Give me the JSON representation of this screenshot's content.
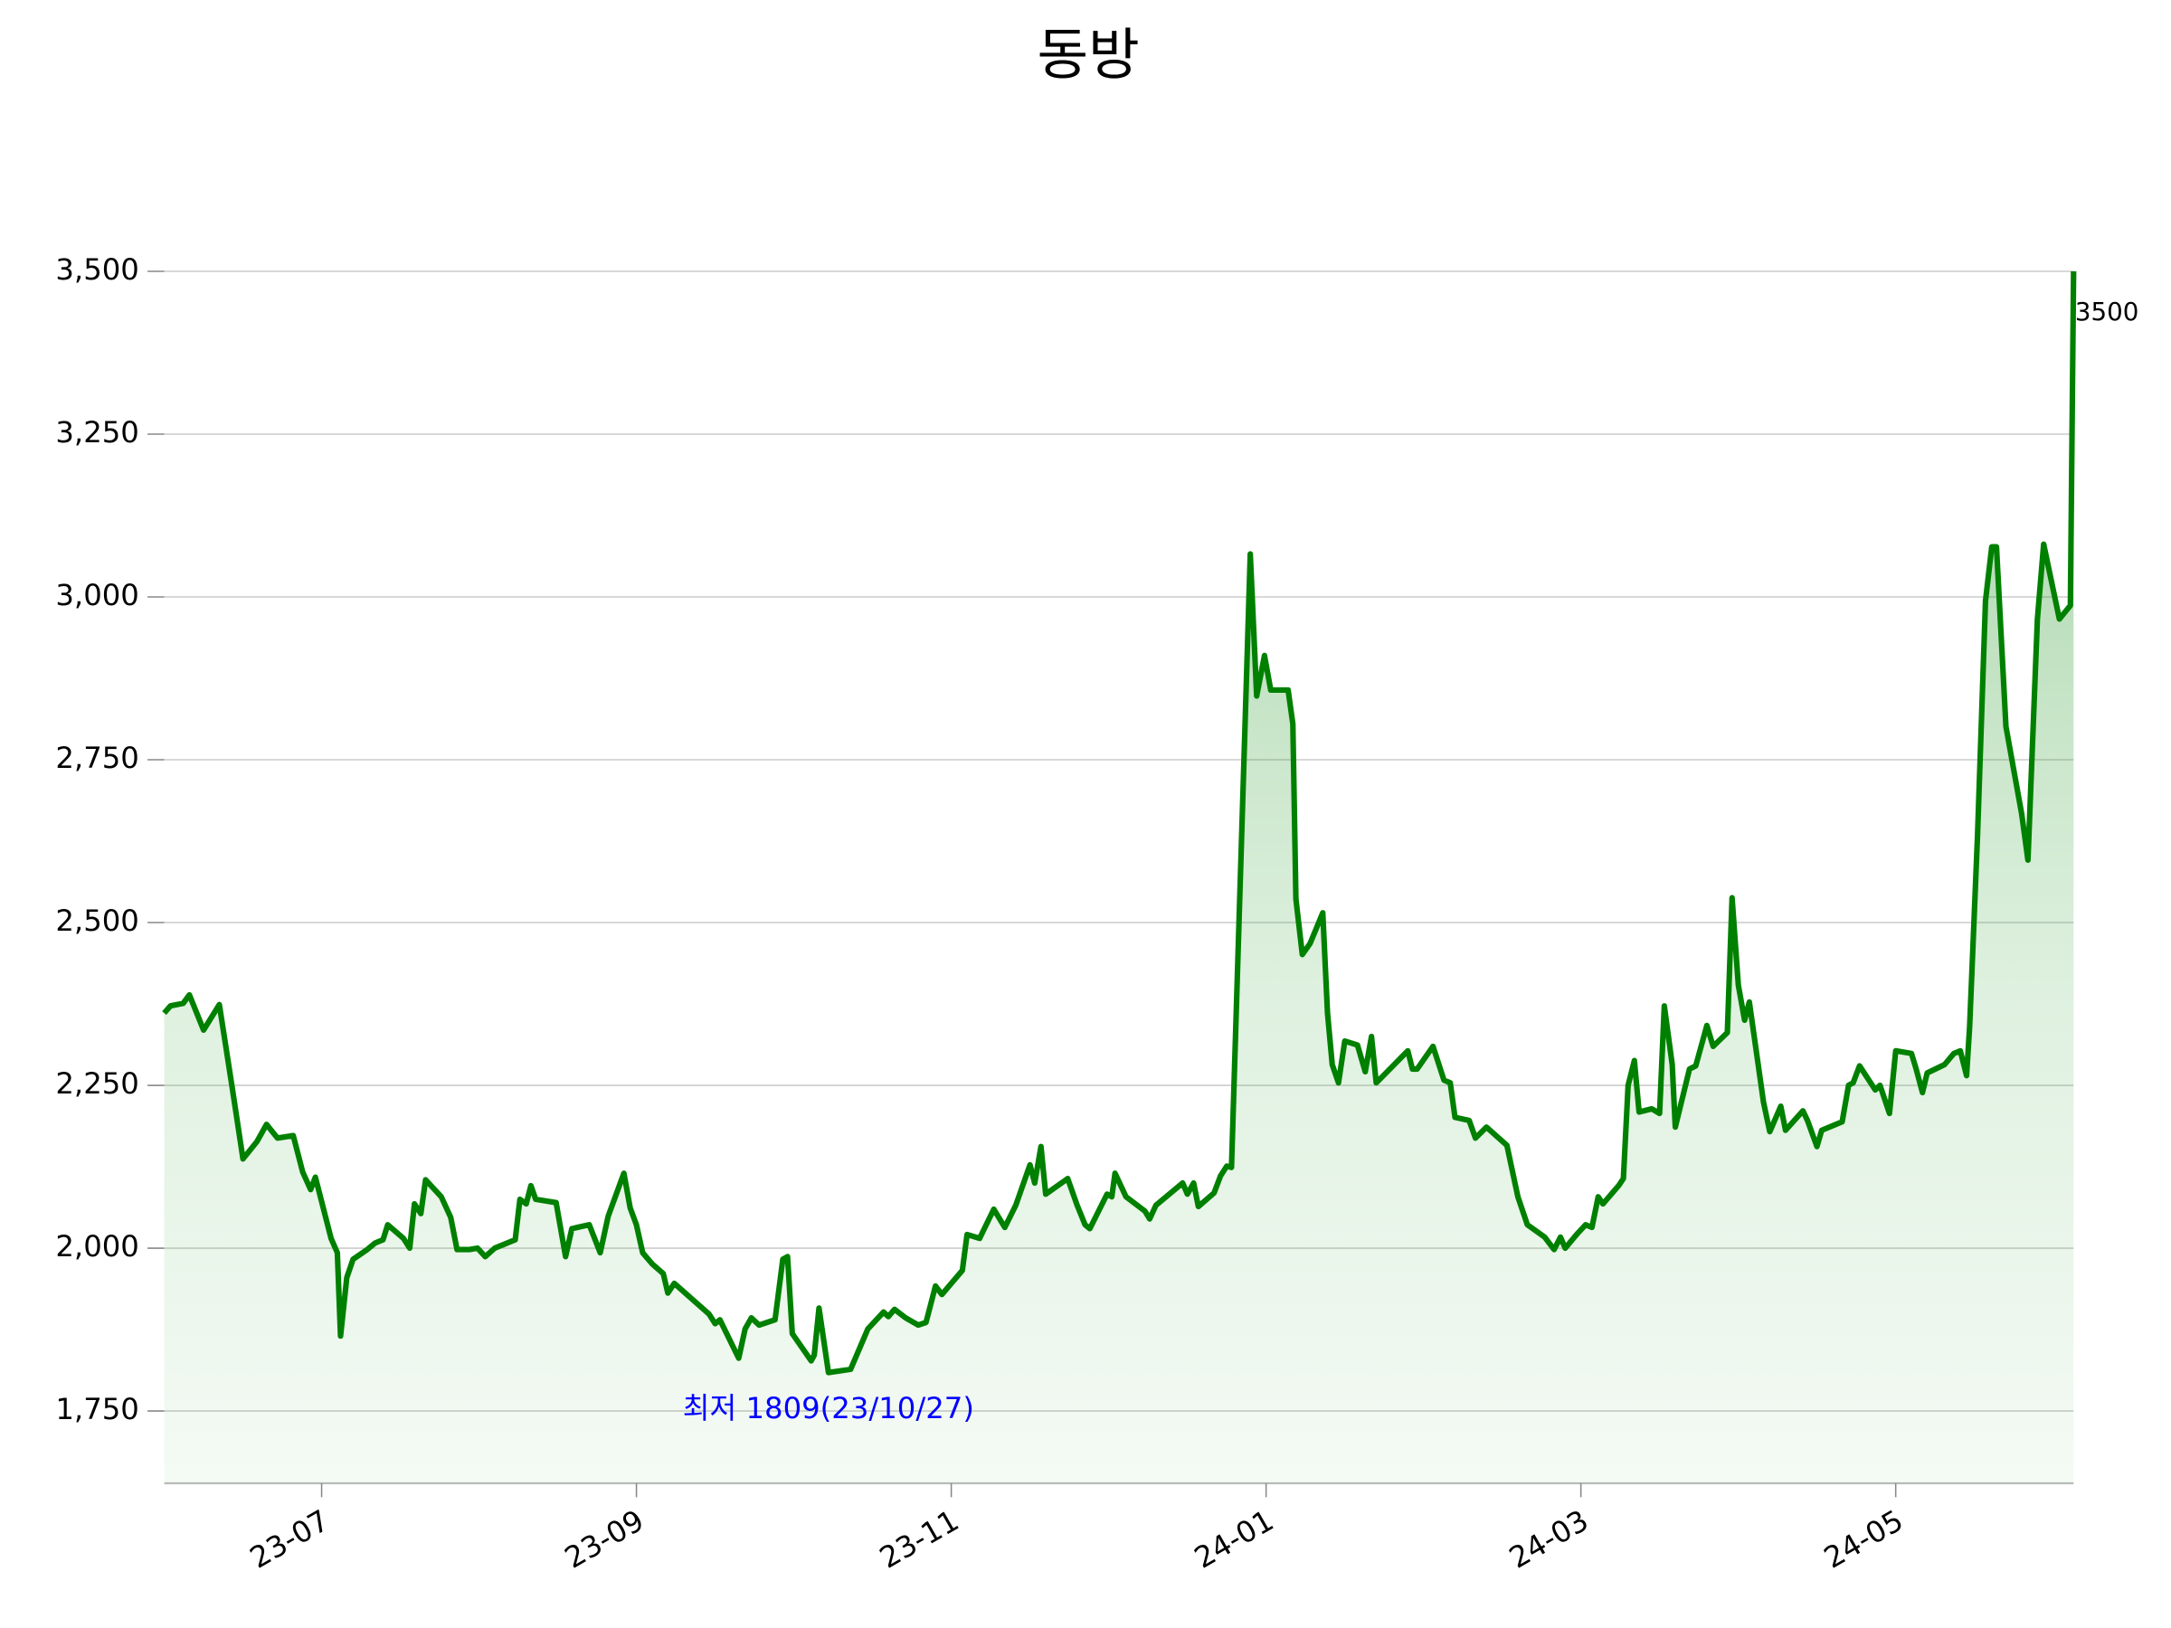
{
  "chart_data": {
    "type": "line",
    "title": "동방",
    "x": [
      0,
      0.04,
      0.12,
      0.16,
      0.25,
      0.35,
      0.43,
      0.5,
      0.59,
      0.65,
      0.72,
      0.82,
      0.88,
      0.93,
      0.96,
      1.06,
      1.1,
      1.12,
      1.16,
      1.2,
      1.29,
      1.34,
      1.39,
      1.42,
      1.52,
      1.56,
      1.59,
      1.63,
      1.66,
      1.76,
      1.82,
      1.86,
      1.94,
      1.99,
      2.04,
      2.1,
      2.23,
      2.26,
      2.3,
      2.33,
      2.36,
      2.49,
      2.55,
      2.59,
      2.7,
      2.77,
      2.82,
      2.92,
      2.96,
      3,
      3.04,
      3.1,
      3.17,
      3.2,
      3.24,
      3.46,
      3.5,
      3.53,
      3.65,
      3.69,
      3.73,
      3.78,
      3.88,
      3.93,
      3.96,
      3.99,
      4.11,
      4.13,
      4.16,
      4.22,
      4.36,
      4.47,
      4.57,
      4.6,
      4.64,
      4.71,
      4.79,
      4.84,
      4.9,
      4.94,
      5.07,
      5.1,
      5.18,
      5.27,
      5.34,
      5.41,
      5.5,
      5.53,
      5.57,
      5.6,
      5.74,
      5.8,
      5.85,
      5.88,
      5.99,
      6.02,
      6.04,
      6.11,
      6.23,
      6.26,
      6.3,
      6.47,
      6.5,
      6.54,
      6.57,
      6.67,
      6.71,
      6.75,
      6.78,
      6.9,
      6.94,
      6.99,
      7.03,
      7.14,
      7.17,
      7.19,
      7.23,
      7.28,
      7.36,
      7.39,
      7.42,
      7.46,
      7.5,
      7.58,
      7.63,
      7.67,
      7.7,
      7.9,
      7.93,
      7.96,
      8.06,
      8.13,
      8.17,
      8.2,
      8.29,
      8.33,
      8.4,
      8.53,
      8.6,
      8.66,
      8.77,
      8.83,
      8.87,
      8.9,
      8.98,
      9.03,
      9.07,
      9.11,
      9.14,
      9.24,
      9.27,
      9.3,
      9.34,
      9.37,
      9.45,
      9.5,
      9.53,
      9.58,
      9.6,
      9.69,
      9.73,
      9.8,
      9.84,
      9.93,
      9.96,
      10,
      10.04,
      10.07,
      10.16,
      10.2,
      10.27,
      10.3,
      10.41,
      10.44,
      10.5,
      10.53,
      10.66,
      10.7,
      10.73,
      10.77,
      10.87,
      10.9,
      10.96,
      11,
      11.1,
      11.13,
      11.17,
      11.2,
      11.31,
      11.37,
      11.41,
      11.45,
      11.47,
      11.52,
      11.57,
      11.61,
      11.64,
      11.7,
      11.8,
      11.84,
      11.9,
      11.94,
      12.04,
      12.11,
      12.13
    ],
    "series": [
      {
        "color": "#008000",
        "values": [
          2361,
          2372,
          2376,
          2389,
          2335,
          2374,
          2250,
          2137,
          2164,
          2190,
          2169,
          2173,
          2117,
          2090,
          2109,
          2015,
          1993,
          1865,
          1955,
          1983,
          1998,
          2008,
          2013,
          2036,
          2015,
          2000,
          2068,
          2053,
          2105,
          2079,
          2047,
          1998,
          1998,
          2000,
          1987,
          2000,
          2013,
          2075,
          2068,
          2096,
          2075,
          2070,
          1987,
          2030,
          2036,
          1993,
          2049,
          2115,
          2062,
          2036,
          1993,
          1976,
          1961,
          1931,
          1946,
          1899,
          1884,
          1890,
          1831,
          1876,
          1893,
          1882,
          1890,
          1983,
          1987,
          1869,
          1827,
          1836,
          1908,
          1809,
          1814,
          1876,
          1902,
          1895,
          1906,
          1893,
          1882,
          1886,
          1942,
          1929,
          1966,
          2021,
          2015,
          2060,
          2032,
          2066,
          2128,
          2100,
          2156,
          2083,
          2107,
          2066,
          2036,
          2030,
          2083,
          2079,
          2115,
          2079,
          2057,
          2045,
          2066,
          2100,
          2083,
          2100,
          2064,
          2085,
          2111,
          2126,
          2124,
          3066,
          2848,
          2910,
          2857,
          2857,
          2805,
          2536,
          2451,
          2468,
          2515,
          2361,
          2282,
          2254,
          2318,
          2312,
          2271,
          2325,
          2254,
          2303,
          2275,
          2275,
          2310,
          2258,
          2254,
          2201,
          2196,
          2169,
          2186,
          2158,
          2079,
          2036,
          2017,
          1998,
          2017,
          2000,
          2023,
          2036,
          2032,
          2079,
          2068,
          2096,
          2107,
          2250,
          2288,
          2209,
          2214,
          2207,
          2372,
          2282,
          2186,
          2275,
          2280,
          2342,
          2310,
          2331,
          2538,
          2404,
          2350,
          2378,
          2224,
          2179,
          2218,
          2181,
          2211,
          2196,
          2156,
          2181,
          2194,
          2250,
          2254,
          2280,
          2243,
          2250,
          2207,
          2303,
          2299,
          2275,
          2239,
          2269,
          2282,
          2299,
          2303,
          2265,
          2340,
          2635,
          2994,
          3077,
          3077,
          2801,
          2667,
          2596,
          2966,
          3081,
          2966,
          2987,
          3500
        ]
      }
    ],
    "xlim": [
      0,
      12.13
    ],
    "xticks": [
      {
        "value": 1,
        "label": "23-07"
      },
      {
        "value": 3,
        "label": "23-09"
      },
      {
        "value": 5,
        "label": "23-11"
      },
      {
        "value": 7,
        "label": "24-01"
      },
      {
        "value": 9,
        "label": "24-03"
      },
      {
        "value": 11,
        "label": "24-05"
      }
    ],
    "ylim": [
      1639,
      3500
    ],
    "yticks": [
      {
        "value": 1750,
        "label": "1,750"
      },
      {
        "value": 2000,
        "label": "2,000"
      },
      {
        "value": 2250,
        "label": "2,250"
      },
      {
        "value": 2500,
        "label": "2,500"
      },
      {
        "value": 2750,
        "label": "2,750"
      },
      {
        "value": 3000,
        "label": "3,000"
      },
      {
        "value": 3250,
        "label": "3,250"
      },
      {
        "value": 3500,
        "label": "3,500"
      }
    ],
    "grid": true,
    "annotations": [
      {
        "text": "최저 1809(23/10/27)",
        "color": "#0000ff"
      },
      {
        "text": "3500",
        "color": "#000000"
      }
    ]
  }
}
